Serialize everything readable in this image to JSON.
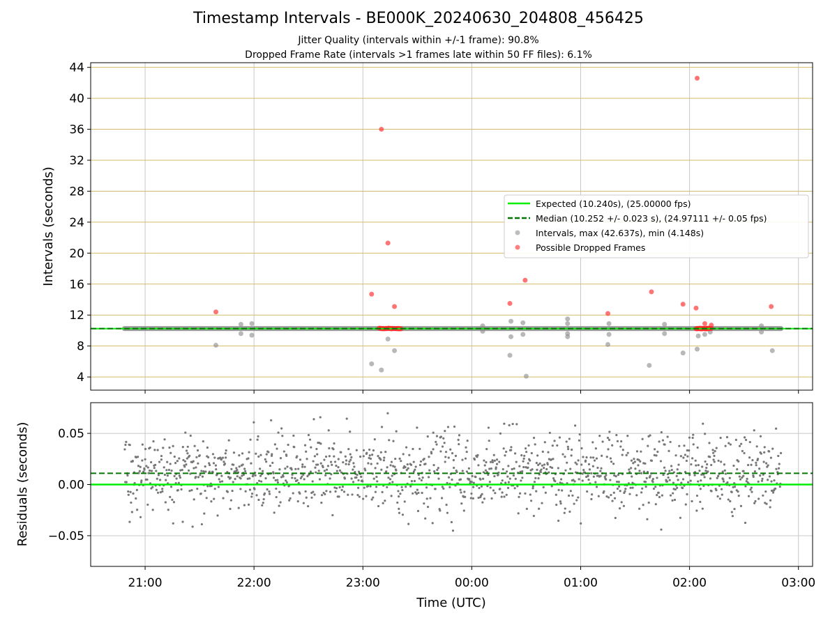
{
  "chart_data": {
    "title": "Timestamp Intervals - BE000K_20240630_204808_456425",
    "subtitle_lines": [
      "Jitter Quality (intervals within +/-1 frame): 90.8%",
      "Dropped Frame Rate (intervals >1 frames late within 50 FF files): 6.1%"
    ],
    "x_time_ticks": [
      "21:00",
      "22:00",
      "23:00",
      "00:00",
      "01:00",
      "02:00",
      "03:00"
    ],
    "xlabel": "Time (UTC)",
    "x_range_hours": [
      20.5,
      27.13
    ],
    "data_start_hour": 20.81,
    "data_end_hour": 26.84,
    "colors": {
      "expected": "#00ee00",
      "median": "#007700",
      "intervals": "#888888",
      "dropped": "#ff2b2b",
      "hgrid_top": "#d4bc6a",
      "grid": "#c8c8c8",
      "residuals": "#777777"
    },
    "top_panel": {
      "type": "scatter",
      "ylabel": "Intervals (seconds)",
      "ylim": [
        2.3,
        44.6
      ],
      "yticks": [
        4,
        8,
        12,
        16,
        20,
        24,
        28,
        32,
        36,
        40,
        44
      ],
      "expected_interval": 10.24,
      "median_interval": 10.252,
      "legend_position": "center-right",
      "legend": [
        "Expected (10.240s), (25.00000 fps)",
        "Median (10.252 +/- 0.023 s), (24.97111 +/- 0.05 fps)",
        "Intervals, max (42.637s), min (4.148s)",
        "Possible Dropped Frames"
      ],
      "interval_outliers": [
        {
          "t": 21.65,
          "y": 8.1
        },
        {
          "t": 21.88,
          "y": 10.8
        },
        {
          "t": 21.88,
          "y": 9.6
        },
        {
          "t": 21.98,
          "y": 10.9
        },
        {
          "t": 21.98,
          "y": 9.4
        },
        {
          "t": 23.08,
          "y": 5.7
        },
        {
          "t": 23.17,
          "y": 4.9
        },
        {
          "t": 23.23,
          "y": 8.9
        },
        {
          "t": 23.29,
          "y": 7.4
        },
        {
          "t": 24.1,
          "y": 10.6
        },
        {
          "t": 24.1,
          "y": 9.9
        },
        {
          "t": 24.35,
          "y": 6.8
        },
        {
          "t": 24.36,
          "y": 11.2
        },
        {
          "t": 24.36,
          "y": 9.2
        },
        {
          "t": 24.47,
          "y": 11.0
        },
        {
          "t": 24.47,
          "y": 9.5
        },
        {
          "t": 24.5,
          "y": 4.1
        },
        {
          "t": 24.88,
          "y": 11.5
        },
        {
          "t": 24.88,
          "y": 10.9
        },
        {
          "t": 24.88,
          "y": 9.6
        },
        {
          "t": 24.88,
          "y": 9.2
        },
        {
          "t": 25.26,
          "y": 10.9
        },
        {
          "t": 25.26,
          "y": 9.5
        },
        {
          "t": 25.25,
          "y": 8.2
        },
        {
          "t": 25.63,
          "y": 5.5
        },
        {
          "t": 25.77,
          "y": 10.8
        },
        {
          "t": 25.77,
          "y": 9.6
        },
        {
          "t": 25.94,
          "y": 7.1
        },
        {
          "t": 26.07,
          "y": 7.6
        },
        {
          "t": 26.08,
          "y": 9.3
        },
        {
          "t": 26.14,
          "y": 9.5
        },
        {
          "t": 26.19,
          "y": 9.8
        },
        {
          "t": 26.66,
          "y": 10.6
        },
        {
          "t": 26.66,
          "y": 9.8
        },
        {
          "t": 26.76,
          "y": 7.4
        }
      ],
      "dropped_frames": [
        {
          "t": 21.65,
          "y": 12.4
        },
        {
          "t": 23.08,
          "y": 14.7
        },
        {
          "t": 23.17,
          "y": 36.0
        },
        {
          "t": 23.23,
          "y": 21.3
        },
        {
          "t": 23.29,
          "y": 13.1
        },
        {
          "t": 24.35,
          "y": 13.5
        },
        {
          "t": 24.49,
          "y": 16.5
        },
        {
          "t": 25.25,
          "y": 12.2
        },
        {
          "t": 25.65,
          "y": 15.0
        },
        {
          "t": 25.94,
          "y": 13.4
        },
        {
          "t": 26.06,
          "y": 12.9
        },
        {
          "t": 26.07,
          "y": 42.6
        },
        {
          "t": 26.14,
          "y": 10.9
        },
        {
          "t": 26.2,
          "y": 10.7
        },
        {
          "t": 26.75,
          "y": 13.1
        }
      ],
      "dropped_cluster_ranges": [
        [
          23.15,
          23.35
        ],
        [
          26.06,
          26.2
        ]
      ]
    },
    "bottom_panel": {
      "type": "scatter",
      "ylabel": "Residuals (seconds)",
      "ylim": [
        -0.08,
        0.08
      ],
      "yticks": [
        -0.05,
        0.0,
        0.05
      ],
      "ytick_labels": [
        "−0.05",
        "0.00",
        "0.05"
      ],
      "median_residual": 0.011,
      "expected_residual": 0.0
    }
  }
}
